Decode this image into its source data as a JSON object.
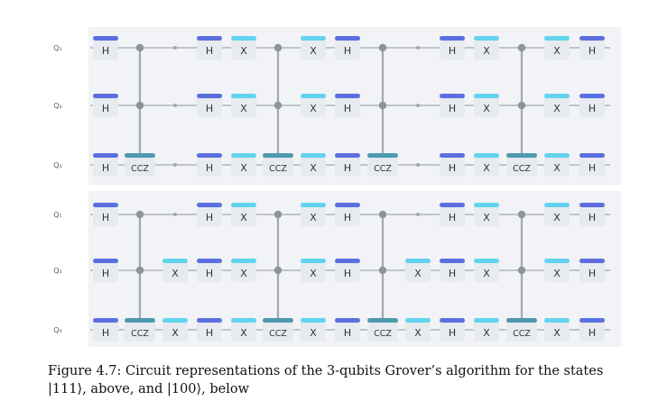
{
  "colors": {
    "panel_bg": "#f1f3f6",
    "wire": "#a3a8b0",
    "gate_box": "#e7eaef",
    "gate_text": "#2f3440",
    "h_bar": "#5b6fe0",
    "x_bar": "#62d3ef",
    "ccz_bar": "#4d9ab0",
    "control_dot": "#8e939b",
    "label": "#555b66"
  },
  "circuits": [
    {
      "name": "grover-111",
      "qubit_labels": [
        "Q₁",
        "Q₂",
        "Q₃"
      ],
      "columns": [
        [
          "H",
          "H",
          "H"
        ],
        [
          "C",
          "C",
          "CCZ"
        ],
        [
          "-",
          "-",
          "-"
        ],
        [
          "H",
          "H",
          "H"
        ],
        [
          "X",
          "X",
          "X"
        ],
        [
          "C",
          "C",
          "CCZ"
        ],
        [
          "X",
          "X",
          "X"
        ],
        [
          "H",
          "H",
          "H"
        ],
        [
          "C",
          "C",
          "CCZ"
        ],
        [
          "-",
          "-",
          "-"
        ],
        [
          "H",
          "H",
          "H"
        ],
        [
          "X",
          "X",
          "X"
        ],
        [
          "C",
          "C",
          "CCZ"
        ],
        [
          "X",
          "X",
          "X"
        ],
        [
          "H",
          "H",
          "H"
        ]
      ]
    },
    {
      "name": "grover-100",
      "qubit_labels": [
        "Q₁",
        "Q₂",
        "Q₃"
      ],
      "columns": [
        [
          "H",
          "H",
          "H"
        ],
        [
          "C",
          "C",
          "CCZ"
        ],
        [
          "-",
          "X",
          "X"
        ],
        [
          "H",
          "H",
          "H"
        ],
        [
          "X",
          "X",
          "X"
        ],
        [
          "C",
          "C",
          "CCZ"
        ],
        [
          "X",
          "X",
          "X"
        ],
        [
          "H",
          "H",
          "H"
        ],
        [
          "C",
          "C",
          "CCZ"
        ],
        [
          "-",
          "X",
          "X"
        ],
        [
          "H",
          "H",
          "H"
        ],
        [
          "X",
          "X",
          "X"
        ],
        [
          "C",
          "C",
          "CCZ"
        ],
        [
          "X",
          "X",
          "X"
        ],
        [
          "H",
          "H",
          "H"
        ]
      ]
    }
  ],
  "caption": {
    "line1": "Figure 4.7: Circuit representations of the 3-qubits Grover’s algorithm for the states",
    "line2": "|111⟩, above, and |100⟩, below"
  }
}
